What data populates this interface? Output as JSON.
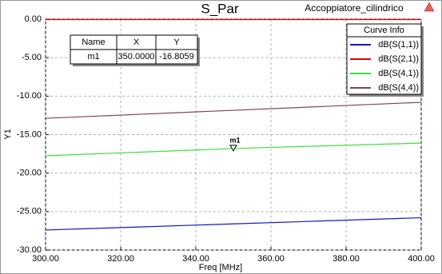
{
  "chart_data": {
    "type": "line",
    "title": "S_Par",
    "subtitle": "Accoppiatore_cilindrico",
    "x_label": "Freq [MHz]",
    "y_label": "Y1",
    "legend_title": "Curve Info",
    "x": [
      300,
      325,
      350,
      375,
      400
    ],
    "series": [
      {
        "name": "dB(S(1,1))",
        "color": "#1414c8",
        "values": [
          -27.4,
          -27.0,
          -26.6,
          -26.2,
          -25.8
        ]
      },
      {
        "name": "dB(S(2,1))",
        "color": "#e00000",
        "values": [
          -0.05,
          -0.05,
          -0.05,
          -0.05,
          -0.05
        ]
      },
      {
        "name": "dB(S(4,1))",
        "color": "#3ce03c",
        "values": [
          -17.75,
          -17.28,
          -16.81,
          -16.45,
          -16.1
        ]
      },
      {
        "name": "dB(S(4,4))",
        "color": "#804050",
        "values": [
          -12.88,
          -12.36,
          -11.84,
          -11.32,
          -10.8
        ]
      }
    ],
    "xlim": [
      300,
      400
    ],
    "ylim": [
      -30,
      0
    ],
    "xticks": [
      {
        "value": 300,
        "label": "300.00"
      },
      {
        "value": 320,
        "label": "320.00"
      },
      {
        "value": 340,
        "label": "340.00"
      },
      {
        "value": 360,
        "label": "360.00"
      },
      {
        "value": 380,
        "label": "380.00"
      },
      {
        "value": 400,
        "label": "400.00"
      }
    ],
    "yticks": [
      {
        "value": 0,
        "label": "0.00"
      },
      {
        "value": -5,
        "label": "-5.00"
      },
      {
        "value": -10,
        "label": "-10.00"
      },
      {
        "value": -15,
        "label": "-15.00"
      },
      {
        "value": -20,
        "label": "-20.00"
      },
      {
        "value": -25,
        "label": "-25.00"
      },
      {
        "value": -30,
        "label": "-30.00"
      }
    ],
    "grid": true,
    "legend_position": "top-right",
    "marker_table_header": [
      "Name",
      "X",
      "Y"
    ],
    "markers": [
      {
        "name": "m1",
        "x": 350,
        "y": -16.8059,
        "x_label": "350.0000",
        "y_label": "-16.8059"
      }
    ]
  }
}
